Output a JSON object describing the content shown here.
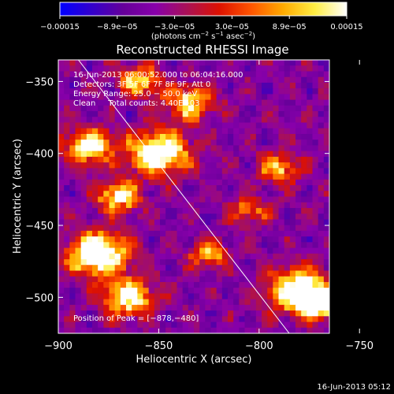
{
  "chart_data": {
    "type": "heatmap",
    "title": "Reconstructed RHESSI Image",
    "xlabel": "Heliocentric X (arcsec)",
    "ylabel": "Heliocentric Y (arcsec)",
    "xlim": [
      -900,
      -765
    ],
    "ylim": [
      -525,
      -335
    ],
    "x_ticks": [
      -900,
      -850,
      -800,
      -750
    ],
    "x_tick_labels": [
      "−900",
      "−850",
      "−800",
      "−750"
    ],
    "y_ticks": [
      -350,
      -400,
      -450,
      -500
    ],
    "y_tick_labels": [
      "−350",
      "−400",
      "−450",
      "−500"
    ],
    "colorbar": {
      "min": -0.00015,
      "max": 0.00015,
      "tick_labels": [
        "−0.00015",
        "−8.9e−05",
        "−3.0e−05",
        "3.0e−05",
        "8.9e−05",
        "0.00015"
      ],
      "units_line1": "(photons cm",
      "units_sup1": "−2",
      "units_line2": " s",
      "units_sup2": "−1",
      "units_line3": " asec",
      "units_sup3": "−2",
      "units_line4": ")",
      "colors": [
        "#0000ff",
        "#3300cc",
        "#660099",
        "#8800aa",
        "#aa1155",
        "#dd1100",
        "#ff5500",
        "#ffaa00",
        "#ffee44",
        "#ffffff"
      ]
    },
    "annotations": [
      "16-Jun-2013 06:00:52.000 to 06:04:16.000",
      "Detectors: 3F 5F 6F 7F 8F 9F, Att 0",
      "Energy Range: 25.0 − 50.0 keV",
      "Clean     Total counts: 4.40E+03"
    ],
    "peak_text": "Position of Peak = [−878,−480]",
    "peak_position": [
      -878,
      -480
    ],
    "limb_line": [
      [
        -890,
        -335
      ],
      [
        -785,
        -525
      ]
    ]
  },
  "footer_timestamp": "16-Jun-2013 05:12"
}
